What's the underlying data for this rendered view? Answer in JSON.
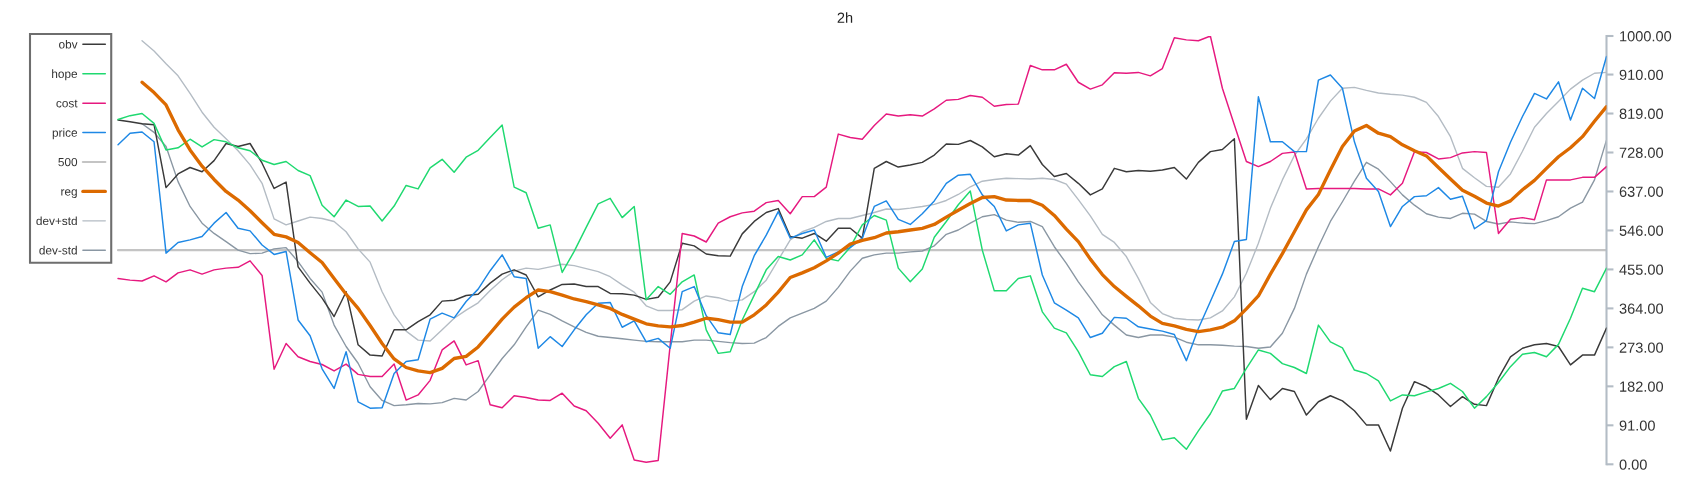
{
  "chart_data": {
    "type": "line",
    "title": "2h",
    "categories": [
      null,
      null,
      null,
      null,
      null,
      null,
      null,
      null,
      null,
      null,
      null,
      null,
      null,
      null,
      null,
      null,
      null,
      null,
      null,
      null,
      null,
      null,
      null,
      null,
      null,
      null,
      null,
      null,
      null,
      null,
      null,
      null,
      null,
      null,
      null,
      null,
      null,
      null,
      null,
      null,
      null,
      null,
      null,
      null,
      null,
      null,
      null,
      null,
      null,
      null,
      null,
      null,
      null,
      null,
      null,
      null,
      null,
      null,
      null,
      null,
      null,
      null,
      null,
      null,
      null,
      null,
      null,
      null,
      null,
      null,
      null,
      null,
      null,
      null,
      null,
      null,
      null,
      null,
      null,
      null,
      null,
      null,
      null,
      null,
      null,
      null,
      null,
      null,
      null,
      null,
      null,
      null,
      null,
      null,
      null,
      null,
      null,
      null,
      null,
      null,
      null,
      null,
      null,
      null,
      null,
      null,
      null,
      null,
      null,
      null,
      null,
      null,
      null,
      null,
      null,
      null,
      null,
      null,
      null,
      null,
      null,
      null,
      null,
      null,
      null,
      null,
      null,
      null,
      null,
      null,
      null,
      null,
      null,
      null
    ],
    "series": [
      {
        "name": "obv",
        "color": "#3a3a3a",
        "values": [
          null,
          null,
          null,
          null,
          null,
          null,
          null,
          null,
          null,
          804,
          800,
          795,
          793,
          646,
          678,
          693,
          683,
          709,
          749,
          742,
          749,
          703,
          644,
          659,
          461,
          423,
          388,
          345,
          403,
          279,
          255,
          253,
          314,
          314,
          333,
          349,
          381,
          383,
          394,
          397,
          423,
          444,
          454,
          442,
          391,
          407,
          420,
          421,
          415,
          415,
          399,
          398,
          395,
          385,
          390,
          426,
          516,
          510,
          491,
          487,
          486,
          538,
          567,
          588,
          597,
          532,
          528,
          539,
          521,
          551,
          551,
          528,
          691,
          707,
          694,
          699,
          705,
          722,
          748,
          747,
          756,
          741,
          718,
          725,
          722,
          744,
          700,
          672,
          679,
          656,
          629,
          643,
          691,
          683,
          686,
          684,
          687,
          693,
          666,
          705,
          730,
          735,
          760,
          105,
          184,
          151,
          177,
          170,
          115,
          146,
          160,
          148,
          125,
          92,
          92,
          31,
          131,
          193,
          181,
          162,
          135,
          158,
          140,
          137,
          201,
          251,
          271,
          279,
          282,
          275,
          232,
          255,
          255,
          318
        ]
      },
      {
        "name": "hope",
        "color": "#1fd970",
        "values": [
          null,
          null,
          null,
          null,
          null,
          null,
          null,
          null,
          null,
          805,
          814,
          819,
          796,
          734,
          739,
          759,
          741,
          758,
          753,
          739,
          732,
          710,
          700,
          707,
          686,
          674,
          605,
          578,
          617,
          602,
          603,
          568,
          603,
          651,
          643,
          692,
          712,
          682,
          717,
          733,
          763,
          792,
          647,
          634,
          551,
          559,
          448,
          497,
          553,
          608,
          621,
          576,
          602,
          384,
          415,
          397,
          426,
          442,
          314,
          259,
          263,
          337,
          395,
          454,
          485,
          477,
          489,
          524,
          481,
          475,
          507,
          559,
          581,
          570,
          458,
          426,
          456,
          530,
          567,
          606,
          638,
          500,
          405,
          405,
          434,
          440,
          356,
          318,
          307,
          263,
          209,
          205,
          228,
          240,
          154,
          115,
          57,
          62,
          35,
          78,
          118,
          171,
          177,
          224,
          267,
          259,
          235,
          226,
          212,
          325,
          286,
          272,
          220,
          212,
          195,
          148,
          162,
          160,
          169,
          177,
          189,
          170,
          131,
          158,
          191,
          228,
          257,
          261,
          251,
          280,
          341,
          411,
          403,
          458
        ]
      },
      {
        "name": "cost",
        "color": "#e6197f",
        "values": [
          null,
          null,
          null,
          null,
          null,
          null,
          null,
          null,
          null,
          434,
          430,
          428,
          440,
          426,
          447,
          454,
          444,
          454,
          458,
          460,
          475,
          441,
          222,
          282,
          251,
          240,
          233,
          218,
          234,
          210,
          205,
          205,
          234,
          150,
          162,
          196,
          267,
          288,
          232,
          242,
          139,
          132,
          160,
          156,
          150,
          149,
          166,
          136,
          125,
          96,
          61,
          92,
          10,
          5,
          9,
          279,
          539,
          533,
          519,
          563,
          578,
          587,
          591,
          611,
          616,
          585,
          625,
          625,
          647,
          771,
          763,
          759,
          791,
          818,
          813,
          816,
          813,
          830,
          850,
          852,
          861,
          857,
          836,
          840,
          841,
          931,
          921,
          921,
          934,
          892,
          876,
          886,
          914,
          913,
          915,
          907,
          924,
          996,
          991,
          989,
          1000,
          878,
          792,
          707,
          695,
          707,
          726,
          729,
          643,
          644,
          644,
          644,
          644,
          643,
          643,
          629,
          656,
          730,
          728,
          713,
          716,
          727,
          730,
          728,
          539,
          572,
          576,
          571,
          664,
          664,
          664,
          670,
          670,
          695
        ]
      },
      {
        "name": "price",
        "color": "#1e88e5",
        "values": [
          null,
          null,
          null,
          null,
          null,
          null,
          null,
          null,
          null,
          746,
          773,
          776,
          753,
          493,
          518,
          524,
          532,
          563,
          588,
          551,
          545,
          512,
          490,
          497,
          337,
          300,
          223,
          177,
          263,
          146,
          131,
          132,
          212,
          240,
          244,
          339,
          353,
          342,
          380,
          409,
          452,
          489,
          438,
          434,
          271,
          298,
          275,
          314,
          349,
          376,
          378,
          320,
          335,
          286,
          294,
          271,
          403,
          415,
          347,
          307,
          303,
          415,
          487,
          535,
          590,
          528,
          539,
          547,
          483,
          496,
          506,
          528,
          602,
          615,
          572,
          560,
          585,
          615,
          656,
          675,
          677,
          629,
          602,
          545,
          559,
          563,
          442,
          377,
          360,
          342,
          296,
          306,
          343,
          341,
          321,
          316,
          311,
          303,
          242,
          317,
          380,
          444,
          520,
          525,
          858,
          753,
          753,
          730,
          730,
          897,
          909,
          878,
          753,
          668,
          637,
          555,
          602,
          625,
          627,
          646,
          619,
          626,
          550,
          569,
          683,
          752,
          812,
          866,
          853,
          893,
          804,
          878,
          854,
          952
        ]
      },
      {
        "name": "500",
        "color": "#c4c4c4",
        "values": [
          null,
          null,
          null,
          null,
          null,
          null,
          null,
          null,
          null,
          500,
          500,
          500,
          500,
          500,
          500,
          500,
          500,
          500,
          500,
          500,
          500,
          500,
          500,
          500,
          500,
          500,
          500,
          500,
          500,
          500,
          500,
          500,
          500,
          500,
          500,
          500,
          500,
          500,
          500,
          500,
          500,
          500,
          500,
          500,
          500,
          500,
          500,
          500,
          500,
          500,
          500,
          500,
          500,
          500,
          500,
          500,
          500,
          500,
          500,
          500,
          500,
          500,
          500,
          500,
          500,
          500,
          500,
          500,
          500,
          500,
          500,
          500,
          500,
          500,
          500,
          500,
          500,
          500,
          500,
          500,
          500,
          500,
          500,
          500,
          500,
          500,
          500,
          500,
          500,
          500,
          500,
          500,
          500,
          500,
          500,
          500,
          500,
          500,
          500,
          500,
          500,
          500,
          500,
          500,
          500,
          500,
          500,
          500,
          500,
          500,
          500,
          500,
          500,
          500,
          500,
          500,
          500,
          500,
          500,
          500,
          500,
          500,
          500,
          500,
          500,
          500,
          500,
          500,
          500,
          500,
          500,
          500,
          500,
          500
        ]
      },
      {
        "name": "reg",
        "color": "#dc6a00",
        "values": [
          null,
          null,
          null,
          null,
          null,
          null,
          null,
          null,
          null,
          null,
          null,
          892,
          868,
          839,
          781,
          734,
          696,
          665,
          637,
          617,
          592,
          564,
          537,
          531,
          518,
          494,
          471,
          434,
          397,
          364,
          324,
          282,
          246,
          226,
          218,
          214,
          224,
          247,
          252,
          274,
          306,
          339,
          367,
          389,
          407,
          403,
          395,
          386,
          380,
          372,
          364,
          350,
          339,
          328,
          323,
          321,
          324,
          332,
          341,
          338,
          332,
          332,
          349,
          372,
          402,
          436,
          447,
          459,
          475,
          493,
          514,
          523,
          529,
          540,
          543,
          547,
          551,
          560,
          577,
          593,
          609,
          623,
          625,
          617,
          616,
          616,
          605,
          581,
          549,
          520,
          479,
          443,
          415,
          392,
          370,
          346,
          329,
          323,
          315,
          310,
          314,
          320,
          335,
          363,
          393,
          444,
          492,
          543,
          594,
          630,
          687,
          742,
          778,
          791,
          773,
          765,
          746,
          732,
          720,
          693,
          666,
          640,
          626,
          610,
          603,
          615,
          641,
          663,
          691,
          718,
          739,
          765,
          801,
          835
        ]
      },
      {
        "name": "dev+std",
        "color": "#b4bcc4",
        "values": [
          null,
          null,
          null,
          null,
          null,
          null,
          null,
          null,
          null,
          null,
          null,
          989,
          965,
          935,
          907,
          866,
          822,
          787,
          760,
          732,
          699,
          656,
          573,
          559,
          568,
          577,
          574,
          567,
          543,
          503,
          472,
          403,
          349,
          311,
          290,
          288,
          314,
          341,
          360,
          377,
          406,
          431,
          451,
          458,
          455,
          461,
          467,
          464,
          457,
          450,
          438,
          419,
          402,
          370,
          359,
          359,
          361,
          381,
          393,
          389,
          381,
          384,
          403,
          430,
          477,
          524,
          543,
          553,
          567,
          574,
          574,
          581,
          588,
          596,
          595,
          598,
          602,
          607,
          616,
          630,
          648,
          661,
          665,
          668,
          667,
          666,
          668,
          665,
          654,
          618,
          580,
          537,
          518,
          485,
          434,
          378,
          352,
          341,
          338,
          337,
          342,
          358,
          391,
          446,
          516,
          598,
          664,
          721,
          760,
          808,
          848,
          878,
          880,
          873,
          867,
          864,
          862,
          857,
          845,
          812,
          765,
          691,
          669,
          649,
          647,
          678,
          731,
          787,
          819,
          847,
          876,
          897,
          913,
          915
        ]
      },
      {
        "name": "dev-std",
        "color": "#8a97a3",
        "values": [
          null,
          null,
          null,
          null,
          null,
          null,
          null,
          null,
          null,
          null,
          null,
          795,
          775,
          742,
          660,
          602,
          563,
          539,
          520,
          500,
          492,
          493,
          503,
          506,
          473,
          434,
          402,
          325,
          275,
          236,
          181,
          149,
          137,
          139,
          142,
          141,
          144,
          154,
          150,
          170,
          209,
          247,
          279,
          321,
          360,
          350,
          335,
          321,
          308,
          299,
          296,
          293,
          290,
          287,
          286,
          286,
          286,
          290,
          290,
          287,
          284,
          282,
          283,
          296,
          322,
          342,
          353,
          364,
          381,
          413,
          451,
          481,
          489,
          493,
          493,
          496,
          498,
          510,
          537,
          547,
          563,
          578,
          583,
          570,
          565,
          567,
          555,
          508,
          469,
          426,
          388,
          349,
          325,
          302,
          296,
          302,
          302,
          297,
          285,
          279,
          279,
          278,
          276,
          275,
          271,
          274,
          306,
          364,
          444,
          508,
          567,
          613,
          661,
          705,
          689,
          660,
          629,
          605,
          585,
          577,
          574,
          586,
          584,
          567,
          561,
          566,
          563,
          562,
          569,
          578,
          598,
          612,
          664,
          757
        ]
      }
    ],
    "ylim": [
      0,
      1000
    ],
    "yticks": [
      {
        "value": 0,
        "label": "0.00"
      },
      {
        "value": 91,
        "label": "91.00"
      },
      {
        "value": 182,
        "label": "182.00"
      },
      {
        "value": 273,
        "label": "273.00"
      },
      {
        "value": 364,
        "label": "364.00"
      },
      {
        "value": 455,
        "label": "455.00"
      },
      {
        "value": 546,
        "label": "546.00"
      },
      {
        "value": 637,
        "label": "637.00"
      },
      {
        "value": 728,
        "label": "728.00"
      },
      {
        "value": 819,
        "label": "819.00"
      },
      {
        "value": 910,
        "label": "910.00"
      },
      {
        "value": 1000,
        "label": "1000.00"
      }
    ],
    "legend": "top left",
    "tick_labels": "y"
  }
}
